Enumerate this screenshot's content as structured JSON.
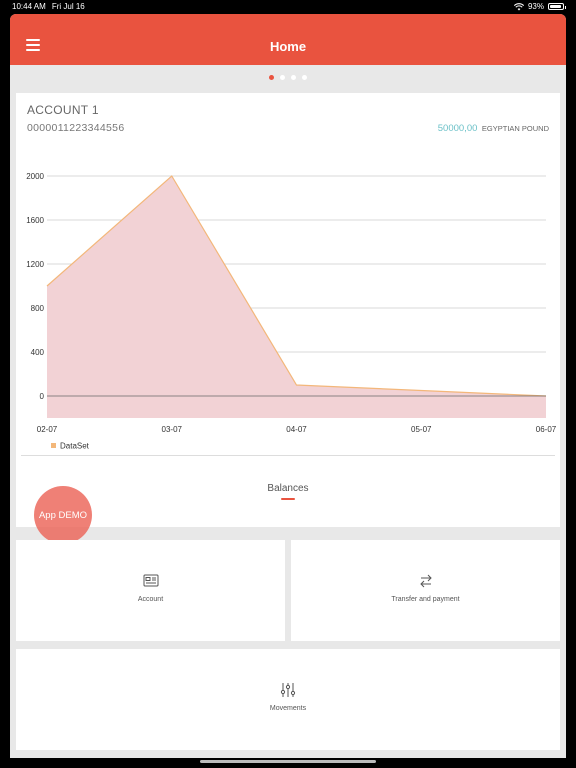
{
  "status_bar": {
    "time": "10:44 AM",
    "date": "Fri Jul 16",
    "battery": "93%"
  },
  "header": {
    "title": "Home"
  },
  "pager": {
    "count": 4,
    "active": 0
  },
  "account": {
    "name": "ACCOUNT 1",
    "number": "0000011223344556",
    "balance_amount": "50000,00",
    "balance_currency": "EGYPTIAN POUND"
  },
  "chart_data": {
    "type": "area",
    "x": [
      "02-07",
      "03-07",
      "04-07",
      "05-07",
      "06-07"
    ],
    "series": [
      {
        "name": "DataSet",
        "values": [
          1000,
          2000,
          100,
          50,
          0
        ]
      }
    ],
    "ylim": [
      -200,
      2000
    ],
    "yticks": [
      "2000",
      "1600",
      "1200",
      "800",
      "400",
      "0"
    ],
    "ytick_values": [
      2000,
      1600,
      1200,
      800,
      400,
      0
    ],
    "grid": true,
    "legend": "bottom-left",
    "colors": {
      "fill": "#f2d2d5",
      "line": "#f3b77a",
      "legend": "#f3b77a"
    }
  },
  "tabs": {
    "balances": "Balances"
  },
  "demo_badge": "App DEMO",
  "tiles": {
    "account": {
      "label": "Account",
      "icon": "account-icon"
    },
    "transfer": {
      "label": "Transfer and payment",
      "icon": "transfer-icon"
    },
    "movements": {
      "label": "Movements",
      "icon": "movements-icon"
    }
  },
  "colors": {
    "accent": "#e9533f",
    "balance": "#6cc1c8"
  }
}
